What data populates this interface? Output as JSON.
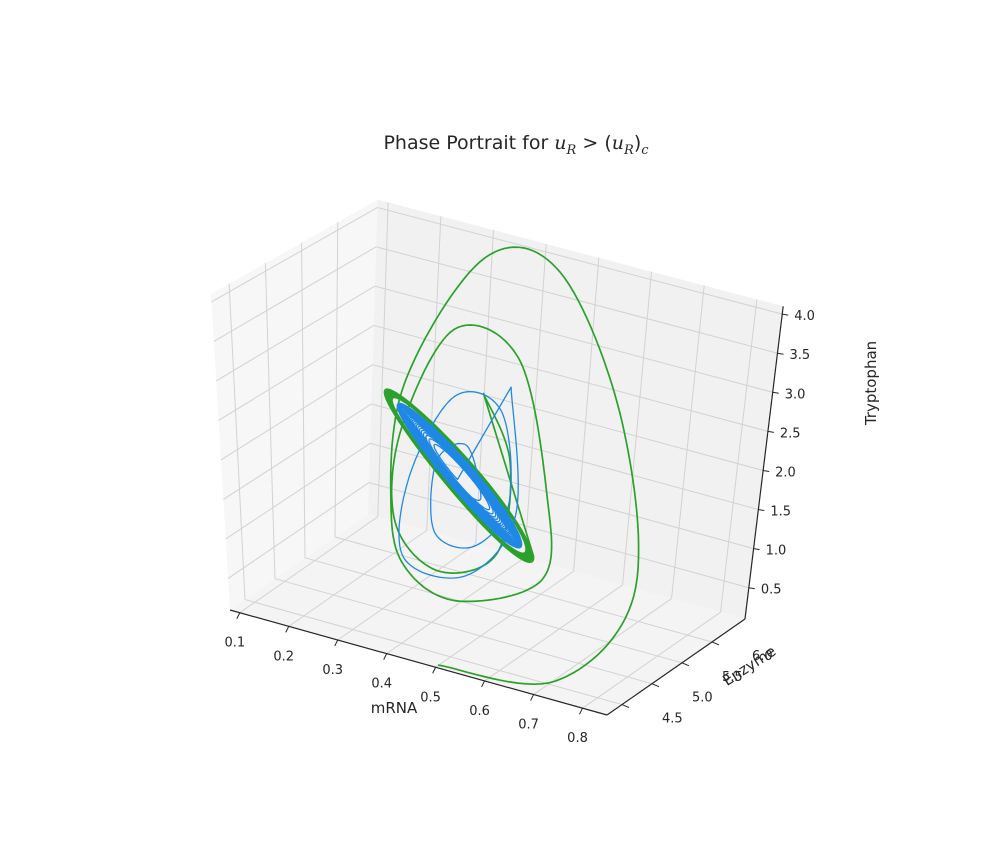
{
  "chart_data": {
    "type": "line",
    "projection": "3d",
    "title": {
      "prefix": "Phase Portrait for ",
      "var1": "u",
      "sub1": "R",
      "op": " > (",
      "var2": "u",
      "sub2": "R",
      "close": ")",
      "sub3": "c"
    },
    "xlabel": "mRNA",
    "ylabel": "Enzyme",
    "zlabel": "Tryptophan",
    "xlim": [
      0.08,
      0.85
    ],
    "ylim": [
      4.25,
      6.55
    ],
    "zlim": [
      0.1,
      4.1
    ],
    "xticks": [
      0.1,
      0.2,
      0.3,
      0.4,
      0.5,
      0.6,
      0.7,
      0.8
    ],
    "xtick_labels": [
      "0.1",
      "0.2",
      "0.3",
      "0.4",
      "0.5",
      "0.6",
      "0.7",
      "0.8"
    ],
    "yticks": [
      4.5,
      5.0,
      5.5,
      6.0
    ],
    "ytick_labels": [
      "4.5",
      "5.0",
      "5.5",
      "6.0"
    ],
    "zticks": [
      0.5,
      1.0,
      1.5,
      2.0,
      2.5,
      3.0,
      3.5,
      4.0
    ],
    "ztick_labels": [
      "0.5",
      "1.0",
      "1.5",
      "2.0",
      "2.5",
      "3.0",
      "3.5",
      "4.0"
    ],
    "grid": true,
    "legend": "none",
    "limit_cycle": {
      "x_range": [
        0.27,
        0.5
      ],
      "y_range": [
        5.05,
        6.05
      ],
      "z_range": [
        0.6,
        2.7
      ]
    },
    "series": [
      {
        "color": "#2ca02c",
        "role": "trajectory from x=0.5, y=4.3, z=0.1 spiraling inward to the limit cycle",
        "start": [
          0.5,
          4.3,
          0.1
        ],
        "waypoints_x": [
          0.5,
          0.72,
          0.78,
          0.65,
          0.45,
          0.3,
          0.2,
          0.28,
          0.35,
          0.45,
          0.55,
          0.5,
          0.4,
          0.3,
          0.26,
          0.3,
          0.4,
          0.48,
          0.45,
          0.38
        ],
        "waypoints_y": [
          4.3,
          4.45,
          5.2,
          5.9,
          6.4,
          6.45,
          6.1,
          5.3,
          5.05,
          5.1,
          5.6,
          6.0,
          6.25,
          6.05,
          5.6,
          5.2,
          5.1,
          5.4,
          5.8,
          5.9
        ],
        "waypoints_z": [
          0.1,
          0.2,
          1.0,
          2.6,
          3.9,
          3.8,
          2.2,
          1.1,
          0.6,
          0.4,
          0.6,
          1.4,
          2.8,
          3.1,
          2.0,
          1.1,
          0.7,
          0.9,
          1.8,
          2.5
        ]
      },
      {
        "color": "#1f88e5",
        "role": "trajectory from x=0.39, y=5.55, z=1.45 spiraling outward to the limit cycle",
        "start": [
          0.39,
          5.55,
          1.45
        ],
        "waypoints_x": [
          0.39,
          0.42,
          0.37,
          0.33,
          0.36,
          0.44,
          0.47,
          0.41,
          0.33,
          0.29,
          0.33,
          0.45,
          0.49,
          0.42
        ],
        "waypoints_y": [
          5.55,
          5.6,
          5.75,
          5.6,
          5.35,
          5.35,
          5.65,
          5.95,
          5.85,
          5.5,
          5.1,
          5.15,
          5.6,
          6.0
        ],
        "waypoints_z": [
          1.45,
          1.4,
          1.9,
          1.7,
          1.0,
          0.95,
          1.4,
          2.3,
          2.4,
          1.5,
          0.75,
          0.7,
          1.3,
          2.6
        ]
      }
    ]
  }
}
